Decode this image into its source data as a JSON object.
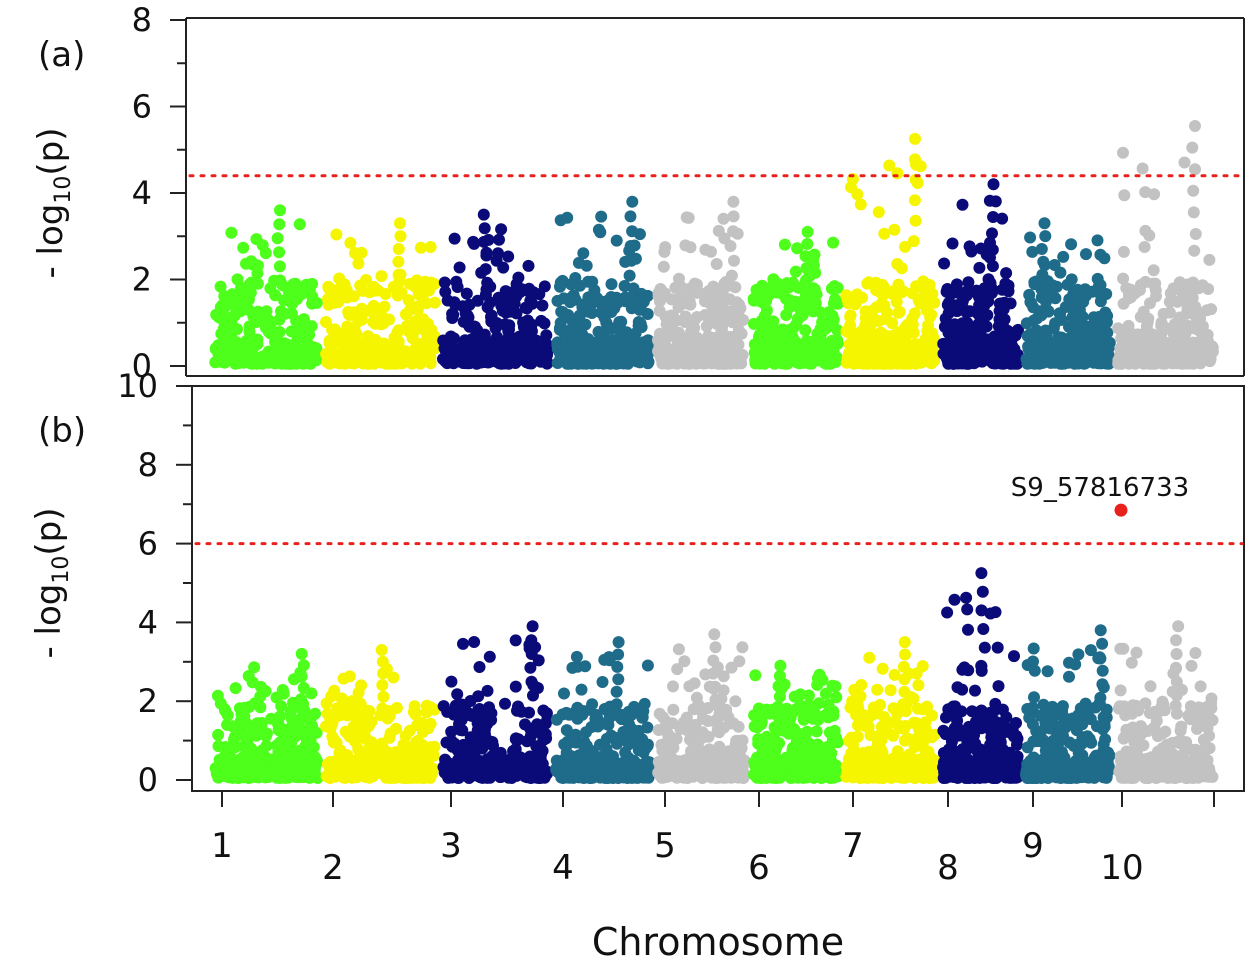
{
  "chart_data": {
    "type": "scatter",
    "xlabel": "Chromosome",
    "chromosomes": [
      "1",
      "2",
      "3",
      "4",
      "5",
      "6",
      "7",
      "8",
      "9",
      "10"
    ],
    "palette": [
      "#4dff1a",
      "#f5f500",
      "#0a0a78",
      "#1e6b8a",
      "#c2c2c2",
      "#4dff1a",
      "#f5f500",
      "#0a0a78",
      "#1e6b8a",
      "#c2c2c2"
    ],
    "panels": [
      {
        "label": "(a)",
        "ylabel_prefix": "- log",
        "ylabel_sub": "10",
        "ylabel_suffix": "(p)",
        "ylim": [
          0,
          8
        ],
        "yticks": [
          "0",
          "2",
          "4",
          "6",
          "8"
        ],
        "threshold": 4.4,
        "threshold_color": "#e8211c",
        "chrom_peaks": [
          3.6,
          3.3,
          3.5,
          3.8,
          3.8,
          3.1,
          5.25,
          4.2,
          3.3,
          5.55
        ]
      },
      {
        "label": "(b)",
        "ylabel_prefix": "- log",
        "ylabel_sub": "10",
        "ylabel_suffix": "(p)",
        "ylim": [
          0,
          10
        ],
        "yticks": [
          "0",
          "2",
          "4",
          "6",
          "8",
          "10"
        ],
        "threshold": 6.0,
        "threshold_color": "#e8211c",
        "chrom_peaks": [
          3.2,
          3.3,
          3.9,
          3.5,
          3.7,
          2.9,
          3.5,
          5.25,
          3.8,
          3.9
        ],
        "highlight": {
          "label": "S9_57816733",
          "chromosome": "10",
          "value": 6.85,
          "color": "#e8211c"
        }
      }
    ]
  }
}
